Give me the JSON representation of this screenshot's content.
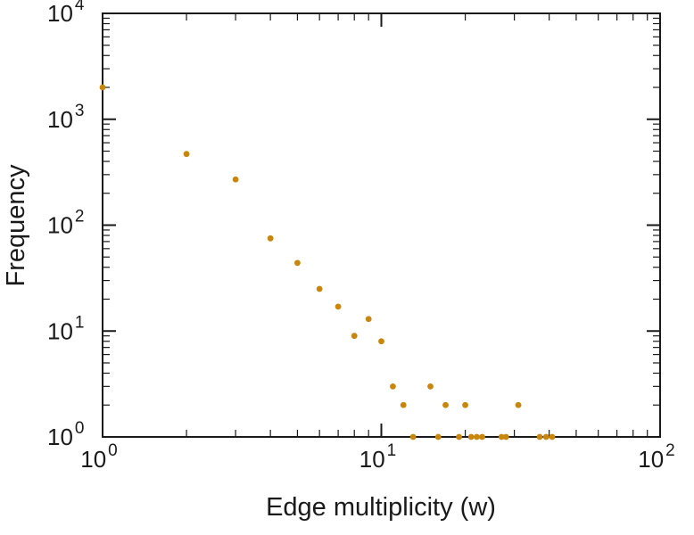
{
  "chart_data": {
    "type": "scatter",
    "title": "",
    "xlabel": "Edge multiplicity (w)",
    "ylabel": "Frequency",
    "x_scale": "log",
    "y_scale": "log",
    "xlim": [
      1,
      100
    ],
    "ylim": [
      1,
      10000
    ],
    "x_ticks": [
      1,
      10,
      100
    ],
    "x_tick_labels": [
      "10^0",
      "10^1",
      "10^2"
    ],
    "y_ticks": [
      1,
      10,
      100,
      1000,
      10000
    ],
    "y_tick_labels": [
      "10^0",
      "10^1",
      "10^2",
      "10^3",
      "10^4"
    ],
    "grid": false,
    "legend": false,
    "marker": "circle",
    "point_color": "#c8860b",
    "frame_color": "#1a1a1a",
    "points": [
      {
        "x": 1,
        "y": 2000
      },
      {
        "x": 2,
        "y": 470
      },
      {
        "x": 3,
        "y": 270
      },
      {
        "x": 4,
        "y": 75
      },
      {
        "x": 5,
        "y": 44
      },
      {
        "x": 6,
        "y": 25
      },
      {
        "x": 7,
        "y": 17
      },
      {
        "x": 8,
        "y": 9
      },
      {
        "x": 9,
        "y": 13
      },
      {
        "x": 10,
        "y": 8
      },
      {
        "x": 11,
        "y": 3
      },
      {
        "x": 12,
        "y": 2
      },
      {
        "x": 13,
        "y": 1
      },
      {
        "x": 15,
        "y": 3
      },
      {
        "x": 16,
        "y": 1
      },
      {
        "x": 17,
        "y": 2
      },
      {
        "x": 19,
        "y": 1
      },
      {
        "x": 20,
        "y": 2
      },
      {
        "x": 21,
        "y": 1
      },
      {
        "x": 22,
        "y": 1
      },
      {
        "x": 23,
        "y": 1
      },
      {
        "x": 27,
        "y": 1
      },
      {
        "x": 28,
        "y": 1
      },
      {
        "x": 31,
        "y": 2
      },
      {
        "x": 37,
        "y": 1
      },
      {
        "x": 39,
        "y": 1
      },
      {
        "x": 41,
        "y": 1
      }
    ]
  }
}
